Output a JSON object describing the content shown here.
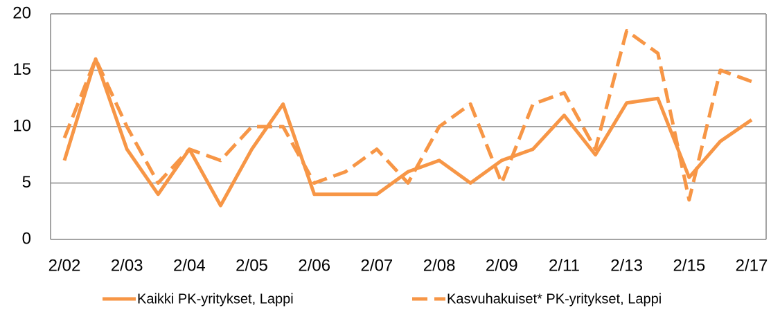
{
  "chart_data": {
    "type": "line",
    "categories": [
      "2/02",
      null,
      "2/03",
      null,
      "2/04",
      null,
      "2/05",
      null,
      "2/06",
      null,
      "2/07",
      null,
      "2/08",
      null,
      "2/09",
      null,
      "2/11",
      null,
      "2/13",
      null,
      "2/15",
      null,
      "2/17"
    ],
    "series": [
      {
        "name": "Kaikki PK-yritykset, Lappi",
        "color": "#f79646",
        "dash": false,
        "values": [
          7,
          16,
          8,
          4,
          8,
          3,
          8,
          12,
          4,
          4,
          4,
          6,
          7,
          5,
          7,
          8,
          11,
          7.5,
          12.1,
          12.5,
          5.5,
          8.7,
          10.6
        ]
      },
      {
        "name": "Kasvuhakuiset* PK-yritykset, Lappi",
        "color": "#f79646",
        "dash": true,
        "values": [
          9,
          16,
          10,
          5,
          8,
          7,
          10,
          10,
          5,
          6,
          8,
          5,
          10,
          12,
          5,
          12,
          13,
          8,
          18.5,
          16.5,
          3.5,
          15,
          14
        ]
      }
    ],
    "ylim": [
      0,
      20
    ],
    "yticks": [
      0,
      5,
      10,
      15,
      20
    ],
    "grid": true,
    "legend": "bottom"
  }
}
